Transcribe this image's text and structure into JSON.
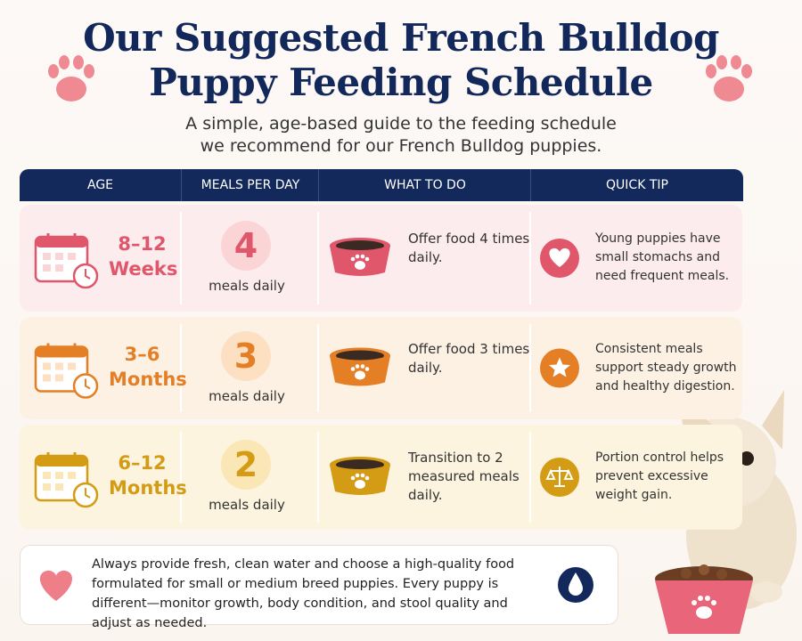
{
  "header": {
    "title": [
      "Our Suggested French Bulldog",
      "Puppy Feeding Schedule"
    ],
    "subtitle": [
      "A simple, age-based guide to the feeding schedule",
      "we recommend for our French Bulldog puppies."
    ]
  },
  "table": {
    "columns": [
      "AGE",
      "MEALS PER DAY",
      "WHAT TO DO",
      "QUICK TIP"
    ],
    "rows": [
      {
        "age_range": "8–12",
        "age_unit": "Weeks",
        "meals": "4",
        "meals_label": "meals daily",
        "what_to_do": "Offer food 4 times daily.",
        "quick_tip": "Young puppies have small stomachs and need frequent meals."
      },
      {
        "age_range": "3–6",
        "age_unit": "Months",
        "meals": "3",
        "meals_label": "meals daily",
        "what_to_do": "Offer food 3 times daily.",
        "quick_tip": "Consistent meals support steady growth and healthy digestion."
      },
      {
        "age_range": "6–12",
        "age_unit": "Months",
        "meals": "2",
        "meals_label": "meals daily",
        "what_to_do": "Transition to 2 measured meals daily.",
        "quick_tip": "Portion control helps prevent excessive weight gain."
      }
    ]
  },
  "footer": {
    "note": "Always provide fresh, clean water and choose a high-quality food formulated for small or medium breed puppies. Every puppy is different—monitor growth, body condition, and stool quality and adjust as needed."
  }
}
